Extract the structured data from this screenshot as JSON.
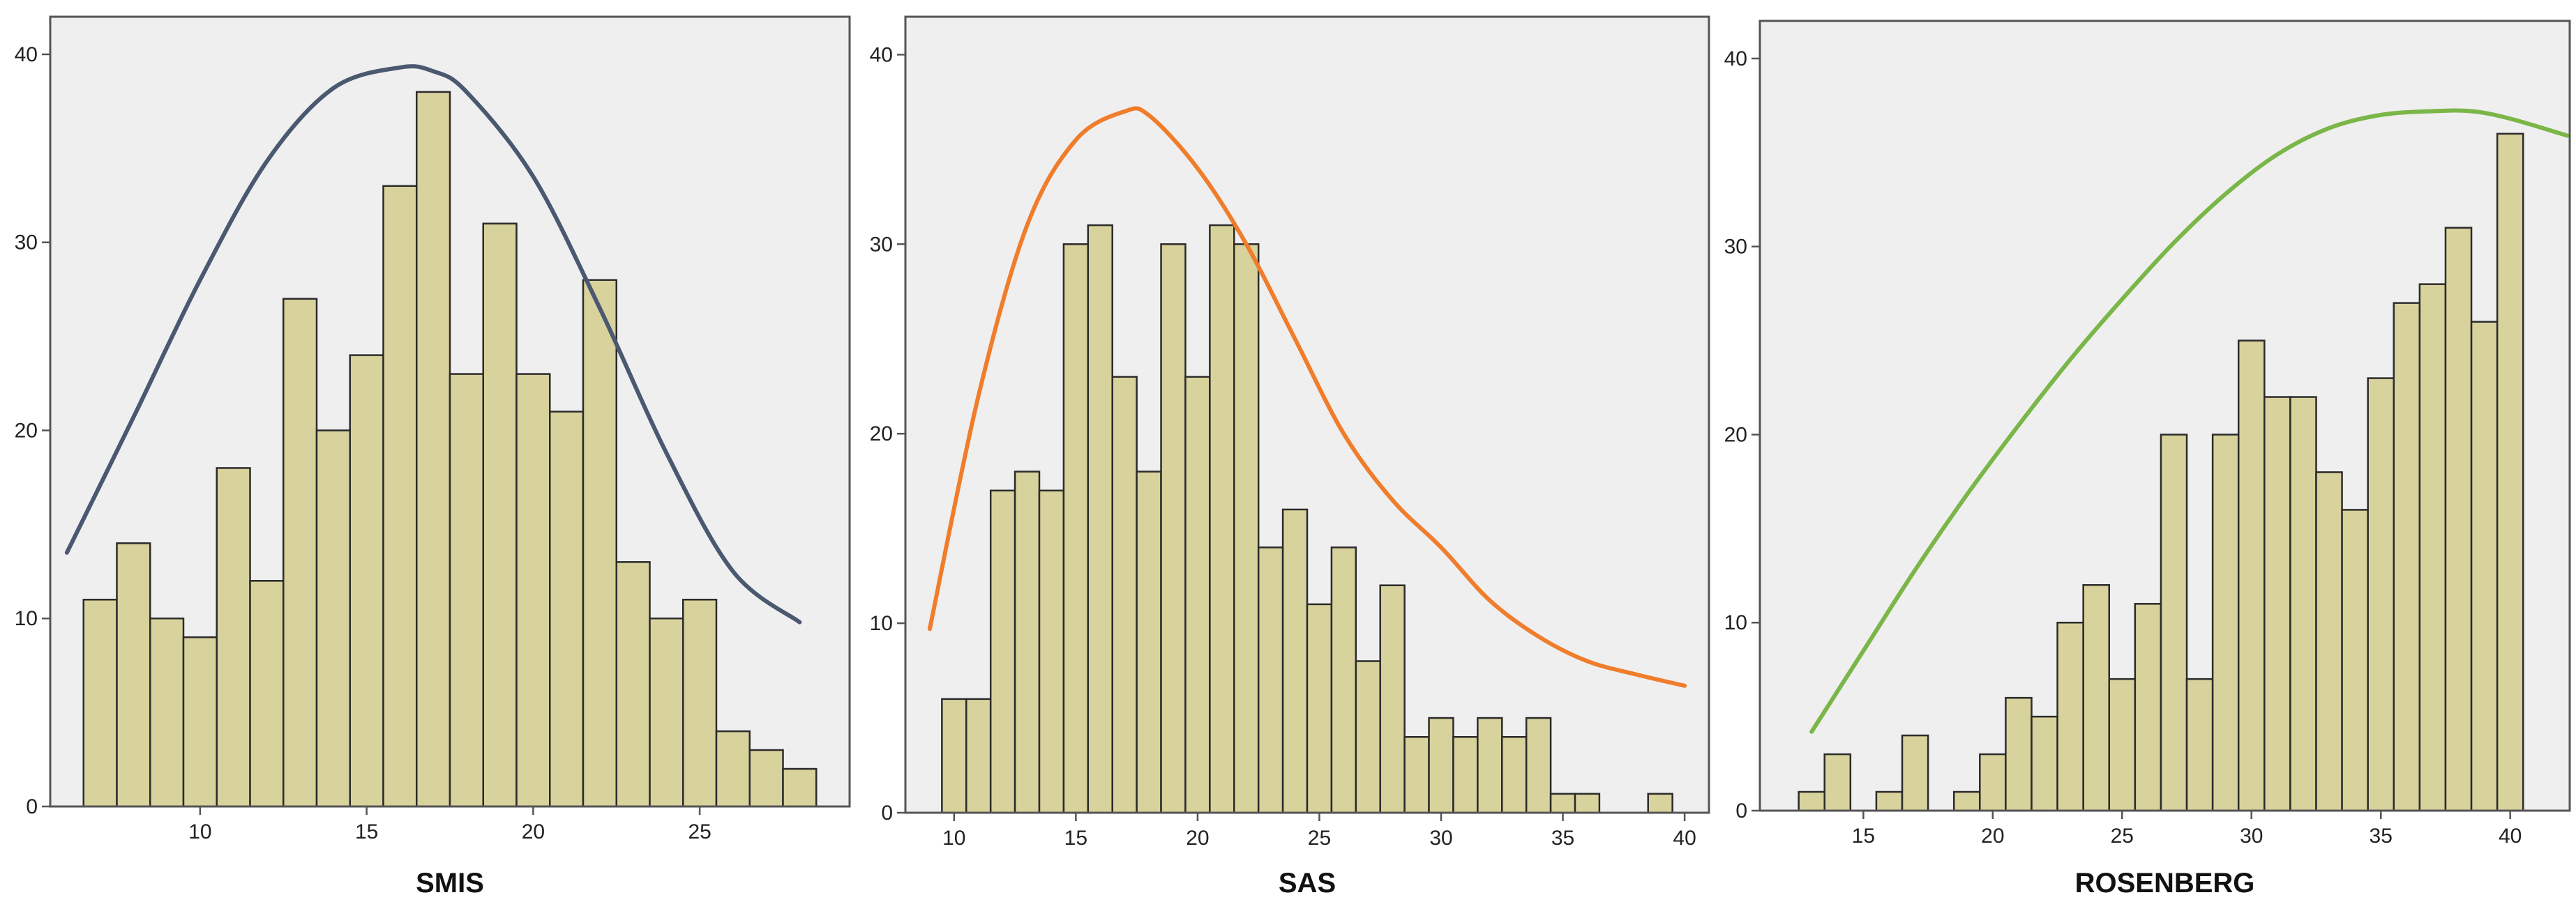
{
  "chart_data": [
    {
      "type": "bar",
      "xlabel": "SMIS",
      "xticks": [
        10,
        15,
        20,
        25
      ],
      "yticks": [
        0,
        10,
        20,
        30,
        40
      ],
      "xlim": [
        5.5,
        29.5
      ],
      "ylim": [
        0,
        42
      ],
      "bin_width": 1,
      "bins": [
        {
          "x": 7,
          "value": 11
        },
        {
          "x": 8,
          "value": 14
        },
        {
          "x": 9,
          "value": 10
        },
        {
          "x": 10,
          "value": 9
        },
        {
          "x": 11,
          "value": 18
        },
        {
          "x": 12,
          "value": 12
        },
        {
          "x": 13,
          "value": 27
        },
        {
          "x": 14,
          "value": 20
        },
        {
          "x": 15,
          "value": 24
        },
        {
          "x": 16,
          "value": 33
        },
        {
          "x": 17,
          "value": 38
        },
        {
          "x": 18,
          "value": 23
        },
        {
          "x": 19,
          "value": 31
        },
        {
          "x": 20,
          "value": 23
        },
        {
          "x": 21,
          "value": 21
        },
        {
          "x": 22,
          "value": 28
        },
        {
          "x": 23,
          "value": 13
        },
        {
          "x": 24,
          "value": 10
        },
        {
          "x": 25,
          "value": 11
        },
        {
          "x": 26,
          "value": 4
        },
        {
          "x": 27,
          "value": 3
        },
        {
          "x": 28,
          "value": 2
        }
      ],
      "curve": {
        "color": "#4a5870",
        "points": [
          [
            6,
            13.5
          ],
          [
            8,
            20.7
          ],
          [
            10,
            28
          ],
          [
            12,
            34.3
          ],
          [
            14,
            38.2
          ],
          [
            16,
            39.3
          ],
          [
            17,
            39.1
          ],
          [
            18,
            38
          ],
          [
            20,
            33.5
          ],
          [
            22,
            26.5
          ],
          [
            24,
            18.8
          ],
          [
            26,
            12.5
          ],
          [
            28,
            9.8
          ]
        ]
      }
    },
    {
      "type": "bar",
      "xlabel": "SAS",
      "xticks": [
        10,
        15,
        20,
        25,
        30,
        35,
        40
      ],
      "yticks": [
        0,
        10,
        20,
        30,
        40
      ],
      "xlim": [
        8,
        41
      ],
      "ylim": [
        0,
        42
      ],
      "bin_width": 1,
      "bins": [
        {
          "x": 10,
          "value": 6
        },
        {
          "x": 11,
          "value": 6
        },
        {
          "x": 12,
          "value": 17
        },
        {
          "x": 13,
          "value": 18
        },
        {
          "x": 14,
          "value": 17
        },
        {
          "x": 15,
          "value": 30
        },
        {
          "x": 16,
          "value": 31
        },
        {
          "x": 17,
          "value": 23
        },
        {
          "x": 18,
          "value": 18
        },
        {
          "x": 19,
          "value": 30
        },
        {
          "x": 20,
          "value": 23
        },
        {
          "x": 21,
          "value": 31
        },
        {
          "x": 22,
          "value": 30
        },
        {
          "x": 23,
          "value": 14
        },
        {
          "x": 24,
          "value": 16
        },
        {
          "x": 25,
          "value": 11
        },
        {
          "x": 26,
          "value": 14
        },
        {
          "x": 27,
          "value": 8
        },
        {
          "x": 28,
          "value": 12
        },
        {
          "x": 29,
          "value": 4
        },
        {
          "x": 30,
          "value": 5
        },
        {
          "x": 31,
          "value": 4
        },
        {
          "x": 32,
          "value": 5
        },
        {
          "x": 33,
          "value": 4
        },
        {
          "x": 34,
          "value": 5
        },
        {
          "x": 35,
          "value": 1
        },
        {
          "x": 36,
          "value": 1
        },
        {
          "x": 39,
          "value": 1
        }
      ],
      "curve": {
        "color": "#f07d2c",
        "points": [
          [
            9,
            9.7
          ],
          [
            11,
            22
          ],
          [
            13,
            31
          ],
          [
            15,
            35.5
          ],
          [
            17,
            37
          ],
          [
            18,
            36.8
          ],
          [
            20,
            34
          ],
          [
            22,
            30
          ],
          [
            24,
            25
          ],
          [
            26,
            20
          ],
          [
            28,
            16.5
          ],
          [
            30,
            14
          ],
          [
            32,
            11.2
          ],
          [
            34,
            9.3
          ],
          [
            36,
            8
          ],
          [
            38,
            7.3
          ],
          [
            40,
            6.7
          ]
        ]
      }
    },
    {
      "type": "bar",
      "xlabel": "ROSENBERG",
      "xticks": [
        15,
        20,
        25,
        30,
        35,
        40
      ],
      "yticks": [
        0,
        10,
        20,
        30,
        40
      ],
      "xlim": [
        11,
        42.3
      ],
      "ylim": [
        0,
        42
      ],
      "bin_width": 1,
      "bins": [
        {
          "x": 13,
          "value": 1
        },
        {
          "x": 14,
          "value": 3
        },
        {
          "x": 16,
          "value": 1
        },
        {
          "x": 17,
          "value": 4
        },
        {
          "x": 19,
          "value": 1
        },
        {
          "x": 20,
          "value": 3
        },
        {
          "x": 21,
          "value": 6
        },
        {
          "x": 22,
          "value": 5
        },
        {
          "x": 23,
          "value": 10
        },
        {
          "x": 24,
          "value": 12
        },
        {
          "x": 25,
          "value": 7
        },
        {
          "x": 26,
          "value": 11
        },
        {
          "x": 27,
          "value": 20
        },
        {
          "x": 28,
          "value": 7
        },
        {
          "x": 29,
          "value": 20
        },
        {
          "x": 30,
          "value": 25
        },
        {
          "x": 31,
          "value": 22
        },
        {
          "x": 32,
          "value": 22
        },
        {
          "x": 33,
          "value": 18
        },
        {
          "x": 34,
          "value": 16
        },
        {
          "x": 35,
          "value": 23
        },
        {
          "x": 36,
          "value": 27
        },
        {
          "x": 37,
          "value": 28
        },
        {
          "x": 38,
          "value": 31
        },
        {
          "x": 39,
          "value": 26
        },
        {
          "x": 40,
          "value": 36
        }
      ],
      "curve": {
        "color": "#7ab648",
        "points": [
          [
            13,
            4.2
          ],
          [
            15,
            8.5
          ],
          [
            17,
            12.8
          ],
          [
            19,
            16.8
          ],
          [
            21,
            20.5
          ],
          [
            23,
            24
          ],
          [
            25,
            27.2
          ],
          [
            27,
            30.2
          ],
          [
            29,
            32.8
          ],
          [
            31,
            34.9
          ],
          [
            33,
            36.3
          ],
          [
            35,
            37
          ],
          [
            37,
            37.2
          ],
          [
            38.5,
            37.2
          ],
          [
            40,
            36.8
          ],
          [
            42.2,
            35.9
          ]
        ]
      }
    }
  ],
  "colors": {
    "plot_background": "#efefef",
    "bar_fill": "#d8d29c",
    "bar_stroke": "#2b2b2b",
    "frame": "#555555"
  }
}
